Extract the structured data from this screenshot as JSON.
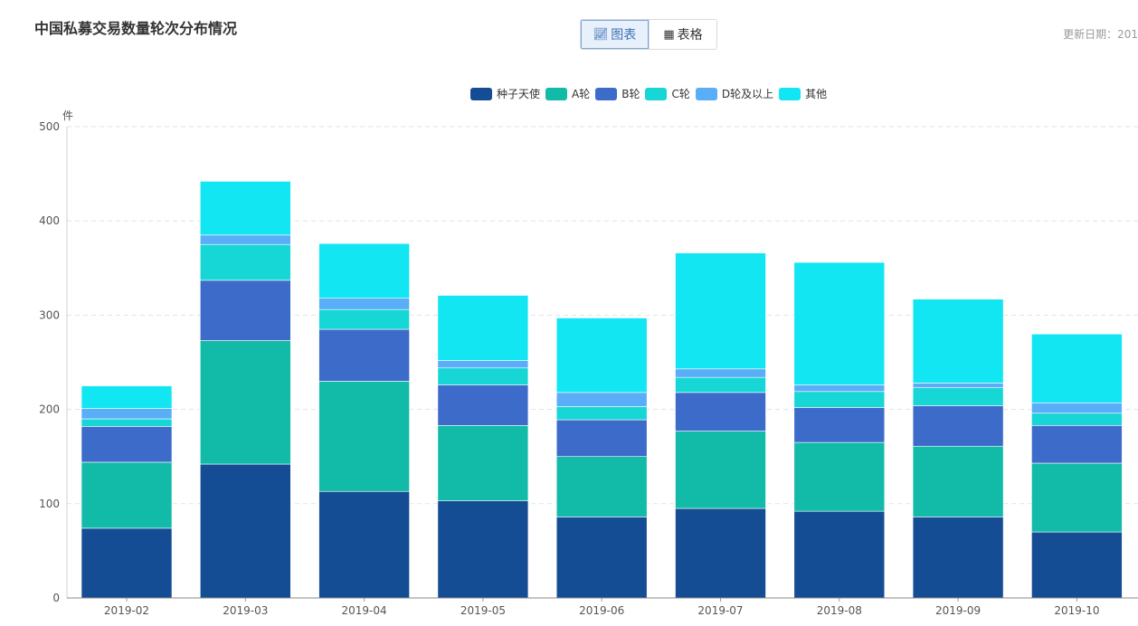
{
  "title": "中国私募交易数量轮次分布情况",
  "toggle": {
    "chart_label": "图表",
    "table_label": "表格",
    "chart_icon": "chart-icon",
    "table_icon": "table-icon"
  },
  "update_label": "更新日期：201",
  "colors": {
    "种子天使": "#154d94",
    "A轮": "#12bba8",
    "B轮": "#3d6bca",
    "C轮": "#17d6d6",
    "D轮及以上": "#5aaef8",
    "其他": "#12e6f2"
  },
  "chart_data": {
    "type": "bar",
    "stacked": true,
    "ylabel": "件",
    "ylim": [
      0,
      500
    ],
    "yticks": [
      0,
      100,
      200,
      300,
      400,
      500
    ],
    "grid": true,
    "legend_position": "top",
    "categories": [
      "2019-02",
      "2019-03",
      "2019-04",
      "2019-05",
      "2019-06",
      "2019-07",
      "2019-08",
      "2019-09",
      "2019-10"
    ],
    "series": [
      {
        "name": "种子天使",
        "values": [
          74,
          142,
          113,
          103,
          86,
          95,
          92,
          86,
          70
        ]
      },
      {
        "name": "A轮",
        "values": [
          70,
          131,
          117,
          80,
          64,
          82,
          73,
          75,
          73
        ]
      },
      {
        "name": "B轮",
        "values": [
          38,
          64,
          55,
          43,
          39,
          41,
          37,
          43,
          40
        ]
      },
      {
        "name": "C轮",
        "values": [
          8,
          38,
          21,
          18,
          14,
          16,
          17,
          19,
          13
        ]
      },
      {
        "name": "D轮及以上",
        "values": [
          11,
          10,
          12,
          8,
          15,
          9,
          7,
          5,
          11
        ]
      },
      {
        "name": "其他",
        "values": [
          24,
          57,
          58,
          69,
          79,
          123,
          130,
          89,
          73
        ]
      }
    ]
  }
}
